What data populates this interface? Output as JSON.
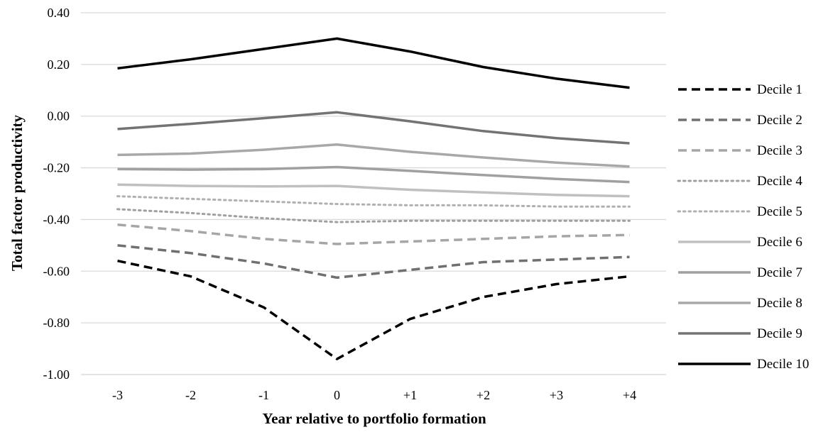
{
  "chart_data": {
    "type": "line",
    "title": "",
    "xlabel": "Year relative to portfolio formation",
    "ylabel": "Total factor productivity",
    "categories": [
      "-3",
      "-2",
      "-1",
      "0",
      "+1",
      "+2",
      "+3",
      "+4"
    ],
    "ylim": [
      -1.0,
      0.4
    ],
    "yticks": [
      "0.40",
      "0.20",
      "0.00",
      "-0.20",
      "-0.40",
      "-0.60",
      "-0.80",
      "-1.00"
    ],
    "ytick_values": [
      0.4,
      0.2,
      0.0,
      -0.2,
      -0.4,
      -0.6,
      -0.8,
      -1.0
    ],
    "grid": "horizontal",
    "legend_position": "right",
    "series": [
      {
        "name": "Decile 1",
        "color": "#000000",
        "style": "dashed",
        "values": [
          -0.56,
          -0.62,
          -0.74,
          -0.94,
          -0.785,
          -0.7,
          -0.65,
          -0.62
        ]
      },
      {
        "name": "Decile 2",
        "color": "#707070",
        "style": "dashed",
        "values": [
          -0.5,
          -0.53,
          -0.57,
          -0.625,
          -0.595,
          -0.565,
          -0.555,
          -0.545
        ]
      },
      {
        "name": "Decile 3",
        "color": "#a6a6a6",
        "style": "dashed",
        "values": [
          -0.42,
          -0.445,
          -0.475,
          -0.495,
          -0.485,
          -0.475,
          -0.465,
          -0.46
        ]
      },
      {
        "name": "Decile 4",
        "color": "#a0a0a0",
        "style": "dotted",
        "values": [
          -0.36,
          -0.375,
          -0.395,
          -0.41,
          -0.405,
          -0.405,
          -0.405,
          -0.405
        ]
      },
      {
        "name": "Decile 5",
        "color": "#b0b0b0",
        "style": "dotted",
        "values": [
          -0.31,
          -0.32,
          -0.33,
          -0.34,
          -0.345,
          -0.345,
          -0.35,
          -0.35
        ]
      },
      {
        "name": "Decile 6",
        "color": "#c0c0c0",
        "style": "solid",
        "values": [
          -0.265,
          -0.27,
          -0.272,
          -0.27,
          -0.285,
          -0.295,
          -0.305,
          -0.31
        ]
      },
      {
        "name": "Decile 7",
        "color": "#a0a0a0",
        "style": "solid",
        "values": [
          -0.205,
          -0.207,
          -0.205,
          -0.197,
          -0.212,
          -0.228,
          -0.243,
          -0.255
        ]
      },
      {
        "name": "Decile 8",
        "color": "#a8a8a8",
        "style": "solid",
        "values": [
          -0.15,
          -0.145,
          -0.13,
          -0.11,
          -0.138,
          -0.16,
          -0.18,
          -0.195
        ]
      },
      {
        "name": "Decile 9",
        "color": "#737373",
        "style": "solid",
        "values": [
          -0.05,
          -0.03,
          -0.008,
          0.015,
          -0.02,
          -0.058,
          -0.085,
          -0.105
        ]
      },
      {
        "name": "Decile 10",
        "color": "#000000",
        "style": "solid",
        "values": [
          0.185,
          0.22,
          0.26,
          0.3,
          0.25,
          0.19,
          0.145,
          0.11
        ]
      }
    ]
  }
}
